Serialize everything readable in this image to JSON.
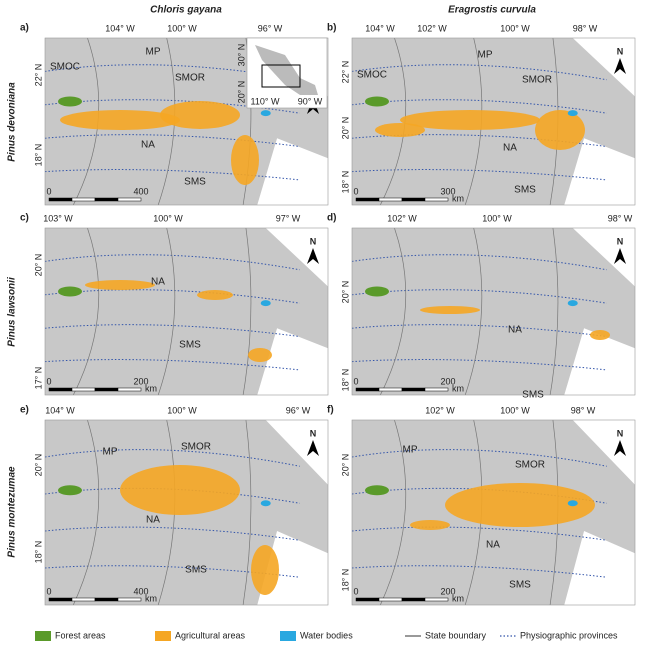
{
  "column_titles": [
    "Chloris gayana",
    "Eragrostis curvula"
  ],
  "row_titles": [
    "Pinus devoniana",
    "Pinus lawsonii",
    "Pinus montezumae"
  ],
  "north_label": "N",
  "panels": [
    {
      "letter": "a)",
      "lon_labels": [
        "104° W",
        "100° W",
        "96° W"
      ],
      "lat_labels": [
        "22° N",
        "18° N"
      ],
      "regions": [
        "SMOC",
        "MP",
        "SMOR",
        "NA",
        "SMS"
      ],
      "scale": [
        "0",
        "400"
      ]
    },
    {
      "letter": "b)",
      "lon_labels": [
        "104° W",
        "102° W",
        "100° W",
        "98° W"
      ],
      "lat_labels": [
        "22° N",
        "20° N",
        "18° N"
      ],
      "regions": [
        "SMOC",
        "MP",
        "SMOR",
        "NA",
        "SMS"
      ],
      "scale": [
        "0",
        "300",
        "km"
      ]
    },
    {
      "letter": "c)",
      "lon_labels": [
        "103° W",
        "100° W",
        "97° W"
      ],
      "lat_labels": [
        "20° N",
        "17° N"
      ],
      "regions": [
        "NA",
        "SMS"
      ],
      "scale": [
        "0",
        "200",
        "km"
      ]
    },
    {
      "letter": "d)",
      "lon_labels": [
        "102° W",
        "100° W",
        "98° W"
      ],
      "lat_labels": [
        "20° N",
        "18° N"
      ],
      "regions": [
        "NA",
        "SMS"
      ],
      "scale": [
        "0",
        "200",
        "km"
      ]
    },
    {
      "letter": "e)",
      "lon_labels": [
        "104° W",
        "100° W",
        "96° W"
      ],
      "lat_labels": [
        "20° N",
        "18° N"
      ],
      "regions": [
        "MP",
        "SMOR",
        "NA",
        "SMS"
      ],
      "scale": [
        "0",
        "400",
        "km"
      ]
    },
    {
      "letter": "f)",
      "lon_labels": [
        "102° W",
        "100° W",
        "98° W"
      ],
      "lat_labels": [
        "20° N",
        "18° N"
      ],
      "regions": [
        "MP",
        "SMOR",
        "NA",
        "SMS"
      ],
      "scale": [
        "0",
        "200",
        "km"
      ]
    }
  ],
  "inset": {
    "lat_labels": [
      "30° N",
      "20° N"
    ],
    "lon_labels": [
      "110° W",
      "90° W"
    ]
  },
  "legend": [
    "Forest areas",
    "Agricultural areas",
    "Water bodies",
    "State boundary",
    "Physiographic provinces"
  ]
}
